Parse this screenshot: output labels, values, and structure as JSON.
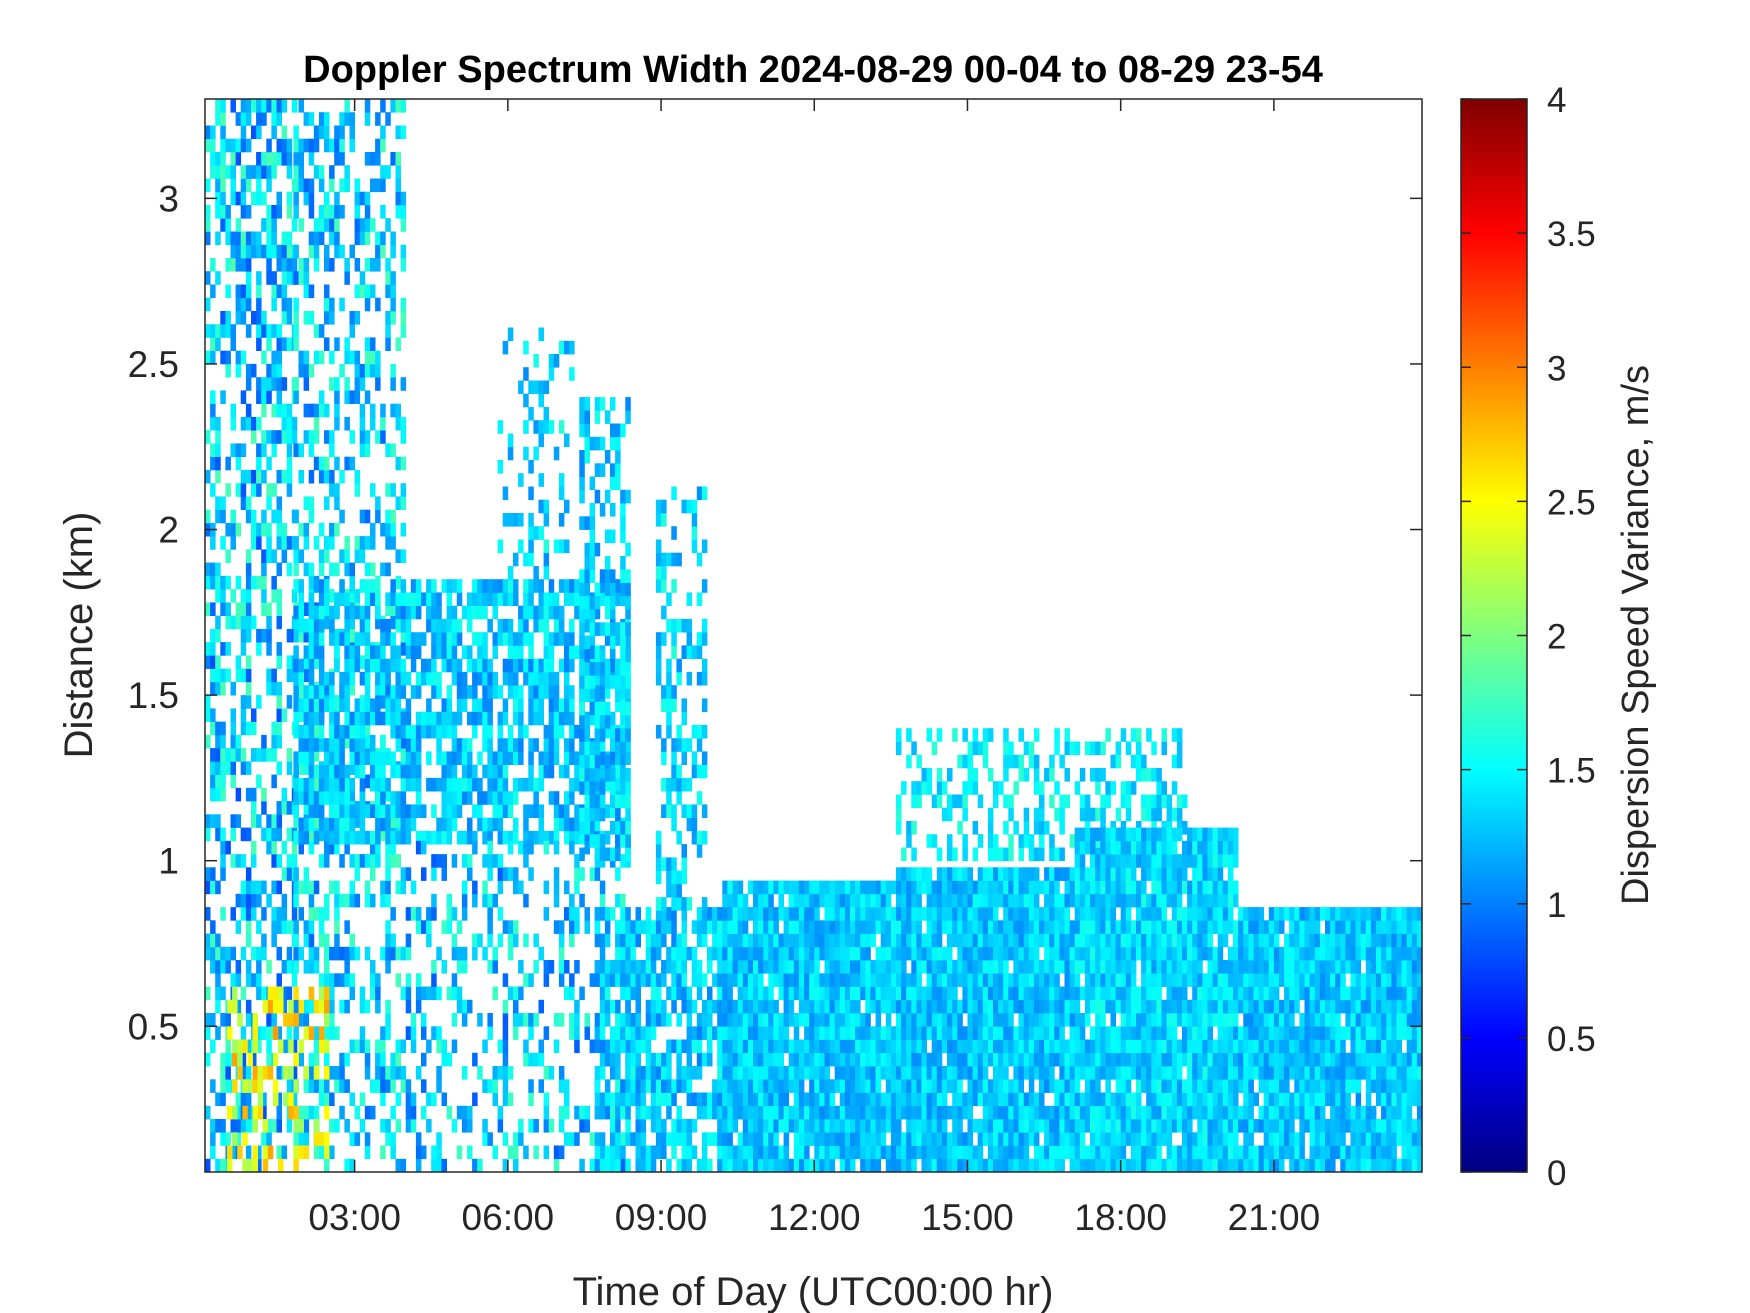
{
  "chart_data": {
    "type": "heatmap",
    "title": "Doppler Spectrum Width 2024-08-29 00-04 to 08-29 23-54",
    "xlabel": "Time of Day (UTC00:00 hr)",
    "ylabel": "Distance (km)",
    "x_unit": "hours",
    "xlim": [
      0.07,
      23.9
    ],
    "ylim": [
      0.06,
      3.3
    ],
    "x_ticks": [
      3,
      6,
      9,
      12,
      15,
      18,
      21
    ],
    "x_tick_labels": [
      "03:00",
      "06:00",
      "09:00",
      "12:00",
      "15:00",
      "18:00",
      "21:00"
    ],
    "y_ticks": [
      0.5,
      1,
      1.5,
      2,
      2.5,
      3
    ],
    "y_tick_labels": [
      "0.5",
      "1",
      "1.5",
      "2",
      "2.5",
      "3"
    ],
    "colorbar": {
      "label": "Dispersion Speed Variance, m/s",
      "colormap": "jet",
      "clim": [
        0,
        4
      ],
      "ticks": [
        0,
        0.5,
        1,
        1.5,
        2,
        2.5,
        3,
        3.5,
        4
      ],
      "tick_labels": [
        "0",
        "0.5",
        "1",
        "1.5",
        "2",
        "2.5",
        "3",
        "3.5",
        "4"
      ],
      "colors": [
        "#00007f",
        "#0000ff",
        "#007fff",
        "#00ffff",
        "#7fff7f",
        "#ffff00",
        "#ff7f00",
        "#ff0000",
        "#7f0000"
      ]
    },
    "grid": false,
    "background_color": "#ffffff",
    "regions": [
      {
        "x0": 0.07,
        "x1": 1.8,
        "y0": 0.06,
        "y1": 3.3,
        "coverage": 0.5,
        "value_mean": 1.3,
        "value_spread": 0.5
      },
      {
        "x0": 1.8,
        "x1": 2.8,
        "y0": 0.06,
        "y1": 3.3,
        "coverage": 0.45,
        "value_mean": 1.35,
        "value_spread": 0.45
      },
      {
        "x0": 2.8,
        "x1": 4.0,
        "y0": 0.06,
        "y1": 3.3,
        "coverage": 0.4,
        "value_mean": 1.35,
        "value_spread": 0.45
      },
      {
        "x0": 1.8,
        "x1": 8.3,
        "y0": 1.05,
        "y1": 1.85,
        "coverage": 0.7,
        "value_mean": 1.3,
        "value_spread": 0.3
      },
      {
        "x0": 4.0,
        "x1": 8.3,
        "y0": 0.06,
        "y1": 1.05,
        "coverage": 0.35,
        "value_mean": 1.3,
        "value_spread": 0.45
      },
      {
        "x0": 7.4,
        "x1": 8.3,
        "y0": 1.0,
        "y1": 2.4,
        "coverage": 0.55,
        "value_mean": 1.3,
        "value_spread": 0.3
      },
      {
        "x0": 5.8,
        "x1": 7.2,
        "y0": 1.85,
        "y1": 2.6,
        "coverage": 0.25,
        "value_mean": 1.35,
        "value_spread": 0.3
      },
      {
        "x0": 7.7,
        "x1": 10.2,
        "y0": 0.06,
        "y1": 0.85,
        "coverage": 0.75,
        "value_mean": 1.3,
        "value_spread": 0.3
      },
      {
        "x0": 8.9,
        "x1": 9.8,
        "y0": 0.85,
        "y1": 2.1,
        "coverage": 0.45,
        "value_mean": 1.35,
        "value_spread": 0.3
      },
      {
        "x0": 10.2,
        "x1": 13.6,
        "y0": 0.06,
        "y1": 0.92,
        "coverage": 0.95,
        "value_mean": 1.3,
        "value_spread": 0.25
      },
      {
        "x0": 13.6,
        "x1": 17.1,
        "y0": 0.06,
        "y1": 0.97,
        "coverage": 0.95,
        "value_mean": 1.3,
        "value_spread": 0.25
      },
      {
        "x0": 13.6,
        "x1": 19.3,
        "y0": 1.0,
        "y1": 1.4,
        "coverage": 0.45,
        "value_mean": 1.45,
        "value_spread": 0.25
      },
      {
        "x0": 17.1,
        "x1": 20.3,
        "y0": 0.06,
        "y1": 1.07,
        "coverage": 0.95,
        "value_mean": 1.35,
        "value_spread": 0.25
      },
      {
        "x0": 20.3,
        "x1": 23.9,
        "y0": 0.06,
        "y1": 0.85,
        "coverage": 0.95,
        "value_mean": 1.3,
        "value_spread": 0.25
      },
      {
        "x0": 0.5,
        "x1": 2.5,
        "y0": 0.06,
        "y1": 0.6,
        "coverage": 0.3,
        "value_mean": 2.5,
        "value_spread": 0.4
      }
    ]
  }
}
